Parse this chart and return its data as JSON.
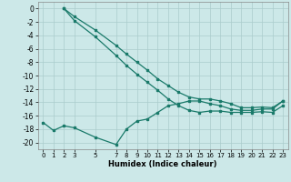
{
  "xlabel": "Humidex (Indice chaleur)",
  "background_color": "#cce8e8",
  "grid_color": "#b0d8d8",
  "line_color": "#1a7a6a",
  "xlim": [
    -0.5,
    23.5
  ],
  "ylim": [
    -21.0,
    1.0
  ],
  "yticks": [
    0,
    -2,
    -4,
    -6,
    -8,
    -10,
    -12,
    -14,
    -16,
    -18,
    -20
  ],
  "xticks": [
    0,
    1,
    2,
    3,
    5,
    7,
    8,
    9,
    10,
    11,
    12,
    13,
    14,
    15,
    16,
    17,
    18,
    19,
    20,
    21,
    22,
    23
  ],
  "line1_x": [
    2,
    3,
    5,
    7,
    8,
    9,
    10,
    11,
    12,
    13,
    14,
    15,
    16,
    17,
    18,
    19,
    20,
    21,
    22,
    23
  ],
  "line1_y": [
    0,
    -1.2,
    -3.2,
    -5.5,
    -6.8,
    -8.0,
    -9.2,
    -10.5,
    -11.5,
    -12.5,
    -13.2,
    -13.5,
    -13.5,
    -13.8,
    -14.2,
    -14.8,
    -14.8,
    -14.7,
    -14.8,
    -13.8
  ],
  "line2_x": [
    2,
    3,
    5,
    7,
    8,
    9,
    10,
    11,
    12,
    13,
    14,
    15,
    16,
    17,
    18,
    19,
    20,
    21,
    22,
    23
  ],
  "line2_y": [
    0,
    -1.8,
    -4.2,
    -7.0,
    -8.5,
    -9.8,
    -11.0,
    -12.2,
    -13.5,
    -14.5,
    -15.2,
    -15.5,
    -15.3,
    -15.3,
    -15.5,
    -15.5,
    -15.5,
    -15.4,
    -15.5,
    -14.5
  ],
  "line3_x": [
    0,
    1,
    2,
    3,
    5,
    7,
    8,
    9,
    10,
    11,
    12,
    13,
    14,
    15,
    16,
    17,
    18,
    19,
    20,
    21,
    22,
    23
  ],
  "line3_y": [
    -17.0,
    -18.2,
    -17.5,
    -17.8,
    -19.2,
    -20.3,
    -18.0,
    -16.8,
    -16.5,
    -15.5,
    -14.5,
    -14.2,
    -13.8,
    -13.8,
    -14.2,
    -14.5,
    -15.0,
    -15.2,
    -15.2,
    -15.0,
    -15.0,
    -13.8
  ]
}
